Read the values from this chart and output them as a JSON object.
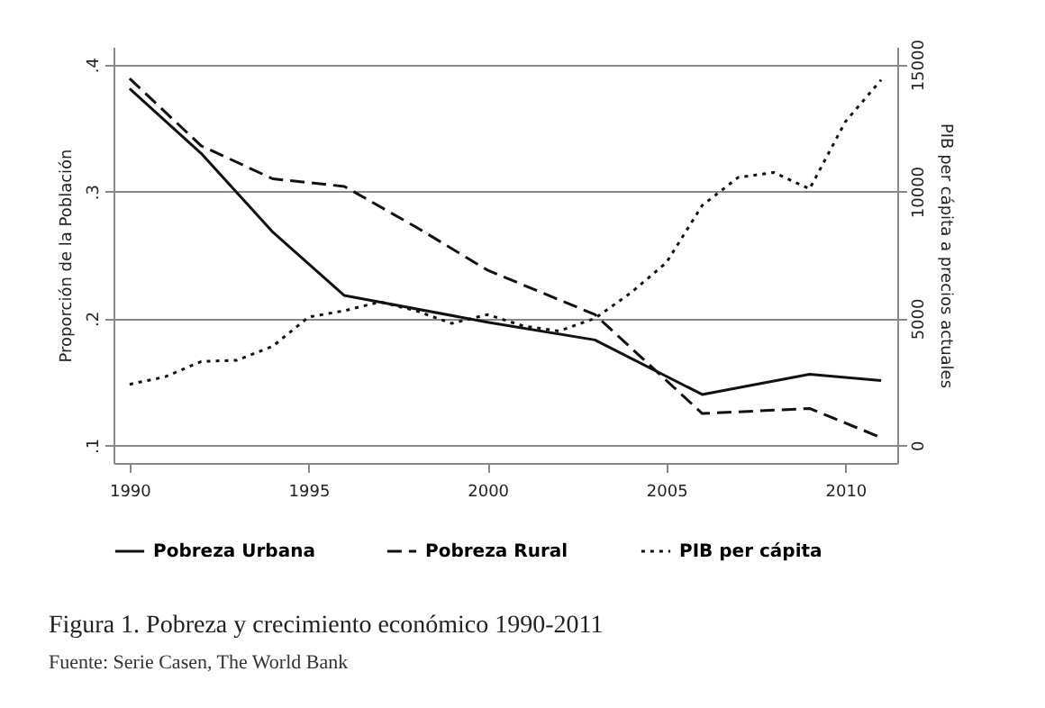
{
  "chart_data": {
    "type": "line",
    "title": "Figura 1. Pobreza y crecimiento económico 1990-2011",
    "annotations": [
      "Fuente: Serie Casen, The World Bank"
    ],
    "ylabel": "Proporción de la Población",
    "y2label": "PIB per cápita a precios actuales",
    "xlim": [
      1989.55,
      2011.45
    ],
    "xticks": [
      1990,
      1995,
      2000,
      2005,
      2010
    ],
    "ylim": [
      0.086,
      0.414
    ],
    "yticks": [
      {
        "value": 0.1,
        "label": ".1"
      },
      {
        "value": 0.2,
        "label": ".2"
      },
      {
        "value": 0.3,
        "label": ".3"
      },
      {
        "value": 0.4,
        "label": ".4"
      }
    ],
    "y2lim": [
      -700,
      15700
    ],
    "y2ticks": [
      0,
      5000,
      10000,
      15000
    ],
    "grid": "y",
    "legend": "bottom",
    "series": [
      {
        "name": "Pobreza Urbana",
        "color": "#111111",
        "line_style": "solid",
        "x": [
          1990,
          1992,
          1994,
          1996,
          2000,
          2003,
          2006,
          2009,
          2011
        ],
        "values": [
          0.381,
          0.33,
          0.268,
          0.218,
          0.197,
          0.183,
          0.14,
          0.156,
          0.151
        ]
      },
      {
        "name": "Pobreza Rural",
        "color": "#111111",
        "line_style": "dashed",
        "x": [
          1990,
          1992,
          1994,
          1996,
          1998,
          2000,
          2003,
          2006,
          2009,
          2011
        ],
        "values": [
          0.389,
          0.336,
          0.31,
          0.304,
          0.272,
          0.238,
          0.203,
          0.125,
          0.129,
          0.106
        ]
      },
      {
        "name": "PIB per cápita",
        "color": "#111111",
        "line_style": "dotted",
        "axis": "y2",
        "x": [
          1990,
          1991,
          1992,
          1993,
          1994,
          1995,
          1996,
          1997,
          1998,
          1999,
          2000,
          2001,
          2002,
          2003,
          2004,
          2005,
          2006,
          2007,
          2008,
          2009,
          2010,
          2011
        ],
        "values": [
          2400,
          2700,
          3300,
          3350,
          3900,
          5050,
          5300,
          5650,
          5300,
          4800,
          5150,
          4700,
          4500,
          5000,
          6000,
          7200,
          9450,
          10550,
          10750,
          10100,
          12750,
          14400
        ]
      }
    ]
  }
}
